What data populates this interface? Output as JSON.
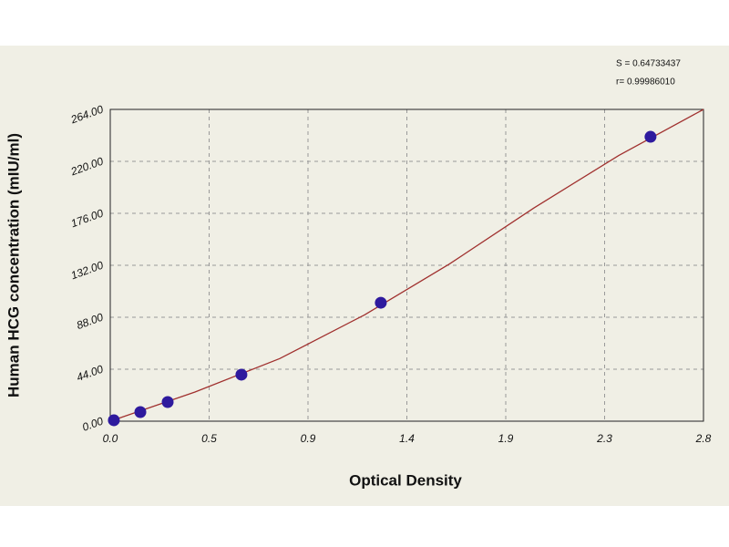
{
  "chart_data": {
    "type": "scatter",
    "xlabel": "Optical Density",
    "ylabel": "Human HCG concentration (mIU/ml)",
    "annotations": [
      "S = 0.64733437",
      "r= 0.99986010"
    ],
    "points": {
      "x": [
        0.017,
        0.142,
        0.271,
        0.619,
        1.277,
        2.55
      ],
      "values": [
        0.8,
        7.7,
        16.2,
        39.4,
        100.3,
        240.8
      ],
      "color": "#2e1a9e"
    },
    "curve": {
      "x": [
        0,
        0.4,
        0.8,
        1.2,
        1.6,
        2.0,
        2.4,
        2.8
      ],
      "values": [
        0,
        24.7,
        53,
        90,
        133,
        180.6,
        225,
        264
      ],
      "color": "#a0302e"
    },
    "xlim": [
      0,
      2.8
    ],
    "ylim": [
      0,
      264
    ],
    "xticks": [
      {
        "value": 0,
        "label": "0.0"
      },
      {
        "value": 0.4667,
        "label": "0.5"
      },
      {
        "value": 0.9333,
        "label": "0.9"
      },
      1.4,
      {
        "value": 1.8667,
        "label": "1.9"
      },
      {
        "value": 2.3333,
        "label": "2.3"
      },
      2.8
    ],
    "yticks": [
      {
        "value": 0,
        "label": "0.00"
      },
      {
        "value": 44,
        "label": "44.00"
      },
      {
        "value": 88,
        "label": "88.00"
      },
      {
        "value": 132,
        "label": "132.00"
      },
      {
        "value": 176,
        "label": "176.00"
      },
      {
        "value": 220,
        "label": "220.00"
      },
      {
        "value": 264,
        "label": "264.00"
      }
    ],
    "grid": true
  }
}
